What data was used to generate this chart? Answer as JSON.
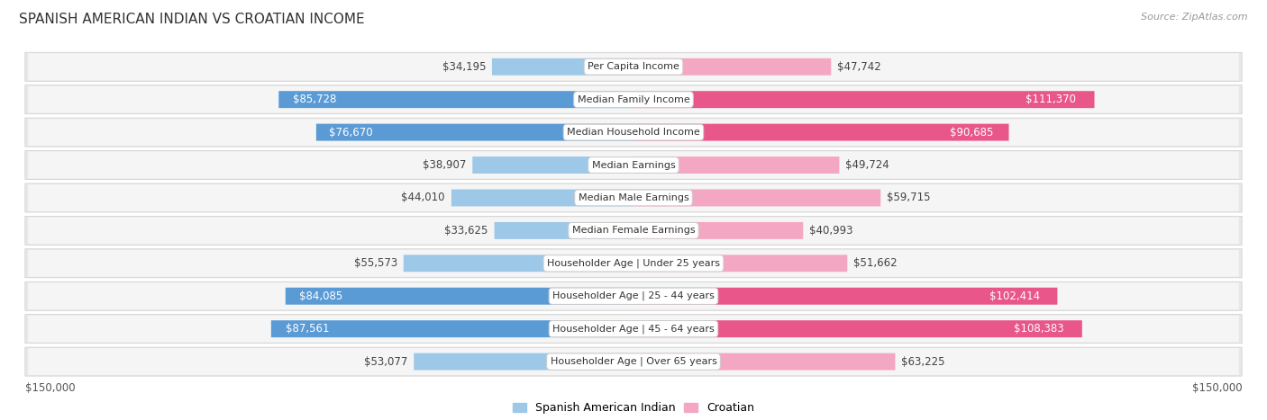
{
  "title": "SPANISH AMERICAN INDIAN VS CROATIAN INCOME",
  "source": "Source: ZipAtlas.com",
  "categories": [
    "Per Capita Income",
    "Median Family Income",
    "Median Household Income",
    "Median Earnings",
    "Median Male Earnings",
    "Median Female Earnings",
    "Householder Age | Under 25 years",
    "Householder Age | 25 - 44 years",
    "Householder Age | 45 - 64 years",
    "Householder Age | Over 65 years"
  ],
  "spanish_values": [
    34195,
    85728,
    76670,
    38907,
    44010,
    33625,
    55573,
    84085,
    87561,
    53077
  ],
  "croatian_values": [
    47742,
    111370,
    90685,
    49724,
    59715,
    40993,
    51662,
    102414,
    108383,
    63225
  ],
  "spanish_labels": [
    "$34,195",
    "$85,728",
    "$76,670",
    "$38,907",
    "$44,010",
    "$33,625",
    "$55,573",
    "$84,085",
    "$87,561",
    "$53,077"
  ],
  "croatian_labels": [
    "$47,742",
    "$111,370",
    "$90,685",
    "$49,724",
    "$59,715",
    "$40,993",
    "$51,662",
    "$102,414",
    "$108,383",
    "$63,225"
  ],
  "max_val": 150000,
  "spanish_color_light": "#9ec8e8",
  "spanish_color_dark": "#5b9bd5",
  "croatian_color_light": "#f4a7c3",
  "croatian_color_dark": "#e8568a",
  "row_bg_color": "#e8e8e8",
  "row_inner_color": "#f5f5f5",
  "bar_height": 0.52,
  "legend_spanish": "Spanish American Indian",
  "legend_croatian": "Croatian",
  "xlabel_left": "$150,000",
  "xlabel_right": "$150,000",
  "title_fontsize": 11,
  "value_fontsize": 8.5,
  "category_fontsize": 8,
  "source_fontsize": 8,
  "spanish_dark_threshold": 70000,
  "croatian_dark_threshold": 80000
}
